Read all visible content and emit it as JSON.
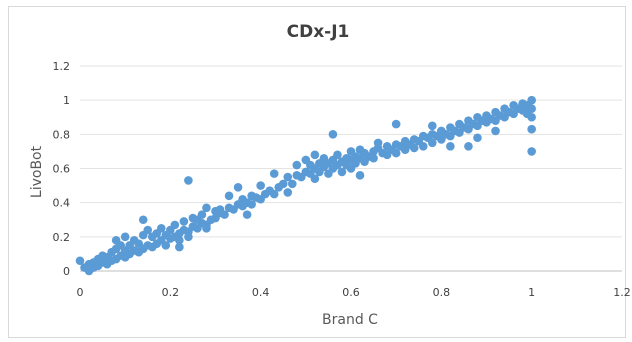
{
  "chart_data": {
    "type": "scatter",
    "title": "CDx-J1",
    "xlabel": "Brand C",
    "ylabel": "LivoBot",
    "xlim": [
      0,
      1.2
    ],
    "ylim": [
      0,
      1.2
    ],
    "x_ticks": [
      "0",
      "0.2",
      "0.4",
      "0.6",
      "0.8",
      "1",
      "1.2"
    ],
    "y_ticks": [
      "0",
      "0.2",
      "0.4",
      "0.6",
      "0.8",
      "1",
      "1.2"
    ],
    "grid": "horizontal",
    "legend": "none",
    "marker_color": "#5b9bd5",
    "series": [
      {
        "points": [
          [
            0.0,
            0.06
          ],
          [
            0.01,
            0.02
          ],
          [
            0.02,
            0.0
          ],
          [
            0.02,
            0.04
          ],
          [
            0.03,
            0.02
          ],
          [
            0.03,
            0.05
          ],
          [
            0.04,
            0.03
          ],
          [
            0.04,
            0.07
          ],
          [
            0.05,
            0.05
          ],
          [
            0.05,
            0.09
          ],
          [
            0.06,
            0.04
          ],
          [
            0.06,
            0.08
          ],
          [
            0.07,
            0.06
          ],
          [
            0.07,
            0.11
          ],
          [
            0.08,
            0.07
          ],
          [
            0.08,
            0.13
          ],
          [
            0.09,
            0.09
          ],
          [
            0.09,
            0.15
          ],
          [
            0.1,
            0.08
          ],
          [
            0.1,
            0.12
          ],
          [
            0.1,
            0.2
          ],
          [
            0.11,
            0.1
          ],
          [
            0.11,
            0.15
          ],
          [
            0.12,
            0.12
          ],
          [
            0.12,
            0.18
          ],
          [
            0.13,
            0.11
          ],
          [
            0.13,
            0.16
          ],
          [
            0.14,
            0.13
          ],
          [
            0.14,
            0.21
          ],
          [
            0.15,
            0.15
          ],
          [
            0.15,
            0.24
          ],
          [
            0.16,
            0.14
          ],
          [
            0.16,
            0.2
          ],
          [
            0.17,
            0.16
          ],
          [
            0.17,
            0.22
          ],
          [
            0.18,
            0.18
          ],
          [
            0.18,
            0.25
          ],
          [
            0.19,
            0.15
          ],
          [
            0.19,
            0.21
          ],
          [
            0.2,
            0.19
          ],
          [
            0.2,
            0.24
          ],
          [
            0.21,
            0.2
          ],
          [
            0.21,
            0.27
          ],
          [
            0.22,
            0.22
          ],
          [
            0.22,
            0.18
          ],
          [
            0.23,
            0.24
          ],
          [
            0.23,
            0.29
          ],
          [
            0.24,
            0.23
          ],
          [
            0.24,
            0.2
          ],
          [
            0.25,
            0.26
          ],
          [
            0.25,
            0.31
          ],
          [
            0.26,
            0.25
          ],
          [
            0.26,
            0.3
          ],
          [
            0.27,
            0.28
          ],
          [
            0.27,
            0.33
          ],
          [
            0.28,
            0.27
          ],
          [
            0.28,
            0.25
          ],
          [
            0.29,
            0.3
          ],
          [
            0.3,
            0.31
          ],
          [
            0.3,
            0.35
          ],
          [
            0.31,
            0.34
          ],
          [
            0.31,
            0.36
          ],
          [
            0.32,
            0.33
          ],
          [
            0.33,
            0.37
          ],
          [
            0.34,
            0.36
          ],
          [
            0.35,
            0.39
          ],
          [
            0.36,
            0.38
          ],
          [
            0.36,
            0.42
          ],
          [
            0.37,
            0.4
          ],
          [
            0.38,
            0.39
          ],
          [
            0.38,
            0.44
          ],
          [
            0.39,
            0.43
          ],
          [
            0.4,
            0.42
          ],
          [
            0.41,
            0.45
          ],
          [
            0.42,
            0.47
          ],
          [
            0.43,
            0.45
          ],
          [
            0.44,
            0.49
          ],
          [
            0.45,
            0.51
          ],
          [
            0.46,
            0.55
          ],
          [
            0.47,
            0.51
          ],
          [
            0.48,
            0.56
          ],
          [
            0.49,
            0.55
          ],
          [
            0.5,
            0.58
          ],
          [
            0.51,
            0.57
          ],
          [
            0.51,
            0.62
          ],
          [
            0.52,
            0.6
          ],
          [
            0.52,
            0.54
          ],
          [
            0.53,
            0.63
          ],
          [
            0.53,
            0.58
          ],
          [
            0.54,
            0.61
          ],
          [
            0.54,
            0.66
          ],
          [
            0.55,
            0.63
          ],
          [
            0.55,
            0.57
          ],
          [
            0.56,
            0.65
          ],
          [
            0.56,
            0.6
          ],
          [
            0.57,
            0.62
          ],
          [
            0.57,
            0.68
          ],
          [
            0.58,
            0.64
          ],
          [
            0.58,
            0.58
          ],
          [
            0.59,
            0.66
          ],
          [
            0.59,
            0.62
          ],
          [
            0.6,
            0.65
          ],
          [
            0.6,
            0.7
          ],
          [
            0.61,
            0.63
          ],
          [
            0.61,
            0.67
          ],
          [
            0.62,
            0.66
          ],
          [
            0.62,
            0.71
          ],
          [
            0.63,
            0.64
          ],
          [
            0.63,
            0.69
          ],
          [
            0.64,
            0.67
          ],
          [
            0.65,
            0.7
          ],
          [
            0.65,
            0.66
          ],
          [
            0.66,
            0.72
          ],
          [
            0.67,
            0.69
          ],
          [
            0.68,
            0.73
          ],
          [
            0.68,
            0.68
          ],
          [
            0.69,
            0.71
          ],
          [
            0.7,
            0.74
          ],
          [
            0.7,
            0.69
          ],
          [
            0.71,
            0.73
          ],
          [
            0.72,
            0.76
          ],
          [
            0.72,
            0.71
          ],
          [
            0.73,
            0.74
          ],
          [
            0.74,
            0.77
          ],
          [
            0.74,
            0.72
          ],
          [
            0.75,
            0.76
          ],
          [
            0.76,
            0.79
          ],
          [
            0.76,
            0.73
          ],
          [
            0.77,
            0.78
          ],
          [
            0.78,
            0.8
          ],
          [
            0.78,
            0.75
          ],
          [
            0.79,
            0.79
          ],
          [
            0.8,
            0.82
          ],
          [
            0.8,
            0.77
          ],
          [
            0.81,
            0.8
          ],
          [
            0.82,
            0.84
          ],
          [
            0.82,
            0.79
          ],
          [
            0.83,
            0.82
          ],
          [
            0.84,
            0.86
          ],
          [
            0.84,
            0.81
          ],
          [
            0.85,
            0.84
          ],
          [
            0.86,
            0.88
          ],
          [
            0.86,
            0.83
          ],
          [
            0.87,
            0.86
          ],
          [
            0.88,
            0.9
          ],
          [
            0.88,
            0.85
          ],
          [
            0.89,
            0.88
          ],
          [
            0.9,
            0.91
          ],
          [
            0.9,
            0.87
          ],
          [
            0.91,
            0.89
          ],
          [
            0.92,
            0.93
          ],
          [
            0.92,
            0.88
          ],
          [
            0.93,
            0.91
          ],
          [
            0.94,
            0.95
          ],
          [
            0.94,
            0.9
          ],
          [
            0.95,
            0.93
          ],
          [
            0.96,
            0.97
          ],
          [
            0.96,
            0.92
          ],
          [
            0.97,
            0.95
          ],
          [
            0.98,
            0.98
          ],
          [
            0.98,
            0.94
          ],
          [
            0.99,
            0.97
          ],
          [
            1.0,
            1.0
          ],
          [
            1.0,
            0.95
          ],
          [
            1.0,
            0.9
          ],
          [
            1.0,
            0.83
          ],
          [
            1.0,
            0.7
          ],
          [
            0.99,
            0.92
          ],
          [
            0.24,
            0.53
          ],
          [
            0.35,
            0.49
          ],
          [
            0.43,
            0.57
          ],
          [
            0.48,
            0.62
          ],
          [
            0.5,
            0.65
          ],
          [
            0.56,
            0.8
          ],
          [
            0.66,
            0.75
          ],
          [
            0.7,
            0.86
          ],
          [
            0.78,
            0.85
          ],
          [
            0.82,
            0.73
          ],
          [
            0.86,
            0.73
          ],
          [
            0.62,
            0.56
          ],
          [
            0.33,
            0.44
          ],
          [
            0.37,
            0.33
          ],
          [
            0.28,
            0.37
          ],
          [
            0.14,
            0.3
          ],
          [
            0.22,
            0.14
          ],
          [
            0.08,
            0.18
          ],
          [
            0.46,
            0.46
          ],
          [
            0.52,
            0.68
          ],
          [
            0.88,
            0.78
          ],
          [
            0.92,
            0.82
          ],
          [
            0.4,
            0.5
          ],
          [
            0.6,
            0.6
          ]
        ]
      }
    ]
  }
}
